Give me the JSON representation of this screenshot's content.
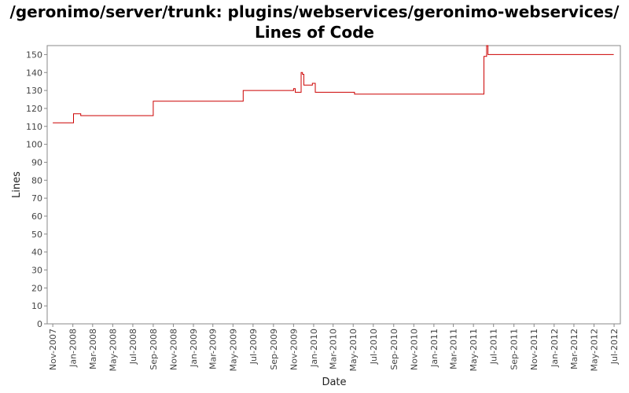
{
  "chart_data": {
    "type": "line",
    "title": "/geronimo/server/trunk: plugins/webservices/geronimo-webservices/ Lines of Code",
    "xlabel": "Date",
    "ylabel": "Lines",
    "ylim": [
      0,
      155
    ],
    "yticks": [
      0,
      10,
      20,
      30,
      40,
      50,
      60,
      70,
      80,
      90,
      100,
      110,
      120,
      130,
      140,
      150
    ],
    "xticks": [
      "Nov-2007",
      "Jan-2008",
      "Mar-2008",
      "May-2008",
      "Jul-2008",
      "Sep-2008",
      "Nov-2008",
      "Jan-2009",
      "Mar-2009",
      "May-2009",
      "Jul-2009",
      "Sep-2009",
      "Nov-2009",
      "Jan-2010",
      "Mar-2010",
      "May-2010",
      "Jul-2010",
      "Sep-2010",
      "Nov-2010",
      "Jan-2011",
      "Mar-2011",
      "May-2011",
      "Jul-2011",
      "Sep-2011",
      "Nov-2011",
      "Jan-2012",
      "Mar-2012",
      "May-2012",
      "Jul-2012"
    ],
    "xrange": [
      "2007-10-15",
      "2012-07-20"
    ],
    "grid": false,
    "line_style": "step",
    "series": [
      {
        "color": "#cc0000",
        "points": [
          [
            "2007-11-01",
            112
          ],
          [
            "2008-01-03",
            117
          ],
          [
            "2008-01-25",
            116
          ],
          [
            "2008-09-01",
            124
          ],
          [
            "2009-06-01",
            130
          ],
          [
            "2009-11-01",
            131
          ],
          [
            "2009-11-06",
            129
          ],
          [
            "2009-11-24",
            140
          ],
          [
            "2009-11-28",
            139
          ],
          [
            "2009-12-02",
            133
          ],
          [
            "2009-12-28",
            134
          ],
          [
            "2010-01-06",
            129
          ],
          [
            "2010-05-05",
            128
          ],
          [
            "2011-06-02",
            149
          ],
          [
            "2011-06-10",
            155
          ],
          [
            "2011-06-14",
            150
          ],
          [
            "2012-06-30",
            150
          ]
        ]
      }
    ]
  }
}
